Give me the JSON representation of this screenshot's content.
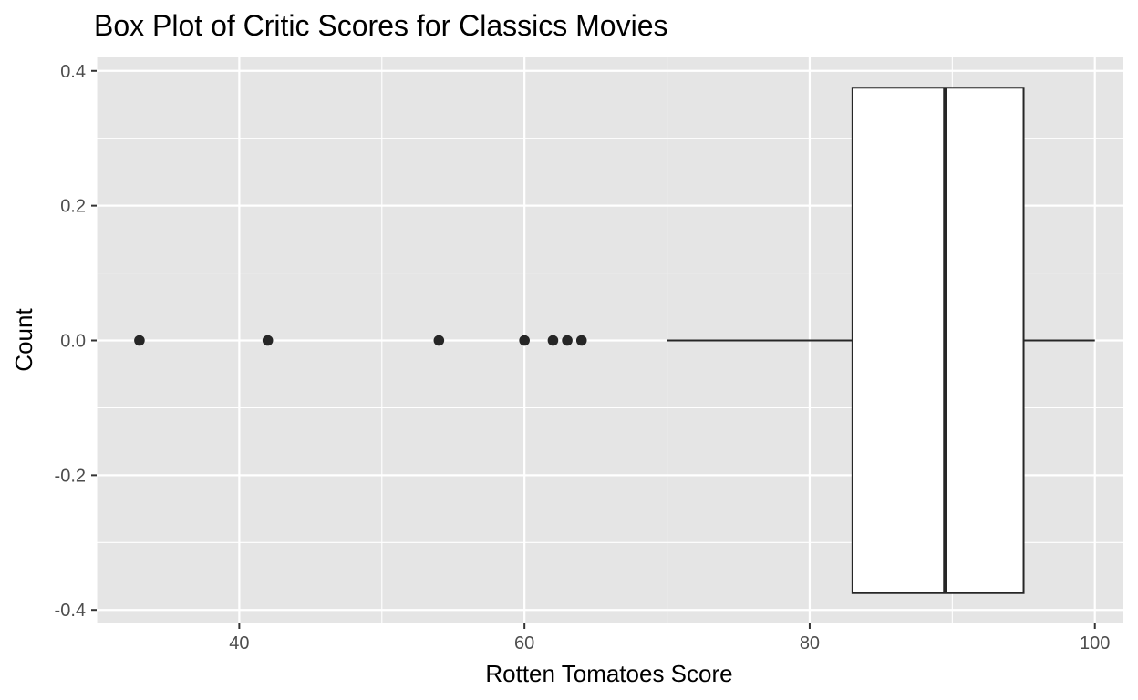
{
  "chart_data": {
    "type": "boxplot",
    "title": "Box Plot of Critic Scores for Classics Movies",
    "xlabel": "Rotten Tomatoes Score",
    "ylabel": "Count",
    "xlim": [
      30,
      102
    ],
    "ylim": [
      -0.42,
      0.42
    ],
    "x_ticks": [
      40,
      60,
      80,
      100
    ],
    "y_ticks": [
      -0.4,
      -0.2,
      0.0,
      0.2,
      0.4
    ],
    "x_tick_labels": [
      "40",
      "60",
      "80",
      "100"
    ],
    "y_tick_labels": [
      "-0.4",
      "-0.2",
      "0.0",
      "0.2",
      "0.4"
    ],
    "grid": true,
    "box": {
      "whisker_low": 70,
      "q1": 83,
      "median": 89.5,
      "q3": 95,
      "whisker_high": 100,
      "box_ymin": -0.375,
      "box_ymax": 0.375,
      "y": 0
    },
    "outliers": [
      33,
      42,
      54,
      60,
      62,
      63,
      64
    ],
    "colors": {
      "panel": "#e5e5e5",
      "grid": "#ffffff",
      "box_fill": "#ffffff",
      "box_stroke": "#262626",
      "points": "#262626"
    }
  }
}
